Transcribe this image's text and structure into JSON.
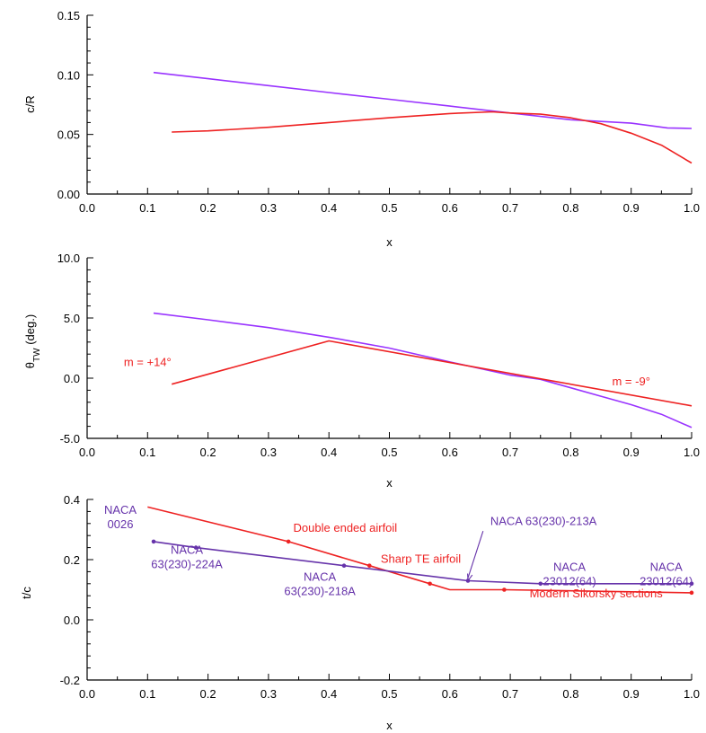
{
  "chart_data": [
    {
      "type": "line",
      "xlabel": "x",
      "ylabel": "c/R",
      "xlim": [
        0.0,
        1.0
      ],
      "ylim": [
        0.0,
        0.15
      ],
      "xticks": [
        "0.0",
        "0.1",
        "0.2",
        "0.3",
        "0.4",
        "0.5",
        "0.6",
        "0.7",
        "0.8",
        "0.9",
        "1.0"
      ],
      "yticks": [
        "0.00",
        "0.05",
        "0.10",
        "0.15"
      ],
      "grid": false,
      "series": [
        {
          "color": "#9933ff",
          "x": [
            0.11,
            0.2,
            0.3,
            0.4,
            0.5,
            0.6,
            0.7,
            0.8,
            0.9,
            0.96,
            1.0
          ],
          "y": [
            0.102,
            0.0968,
            0.091,
            0.0852,
            0.0795,
            0.0738,
            0.068,
            0.0623,
            0.0595,
            0.0555,
            0.055
          ]
        },
        {
          "color": "#ee2222",
          "x": [
            0.14,
            0.2,
            0.3,
            0.4,
            0.5,
            0.6,
            0.67,
            0.7,
            0.75,
            0.8,
            0.85,
            0.9,
            0.95,
            1.0
          ],
          "y": [
            0.052,
            0.053,
            0.056,
            0.06,
            0.064,
            0.0675,
            0.069,
            0.068,
            0.067,
            0.064,
            0.059,
            0.051,
            0.041,
            0.026
          ]
        }
      ]
    },
    {
      "type": "line",
      "xlabel": "x",
      "ylabel": "θ",
      "ylabel_sub": "TW",
      "ylabel_tail": " (deg.)",
      "xlim": [
        0.0,
        1.0
      ],
      "ylim": [
        -5.0,
        10.0
      ],
      "xticks": [
        "0.0",
        "0.1",
        "0.2",
        "0.3",
        "0.4",
        "0.5",
        "0.6",
        "0.7",
        "0.8",
        "0.9",
        "1.0"
      ],
      "yticks": [
        "-5.0",
        "0.0",
        "5.0",
        "10.0"
      ],
      "grid": false,
      "annotations": [
        {
          "text": "m = +14°",
          "x": 0.1,
          "y": 1.0
        },
        {
          "text": "m = -9°",
          "x": 0.9,
          "y": -0.6
        }
      ],
      "series": [
        {
          "color": "#9933ff",
          "x": [
            0.11,
            0.2,
            0.3,
            0.4,
            0.5,
            0.6,
            0.7,
            0.75,
            0.8,
            0.85,
            0.9,
            0.95,
            1.0
          ],
          "y": [
            5.4,
            4.85,
            4.2,
            3.4,
            2.5,
            1.35,
            0.25,
            -0.1,
            -0.8,
            -1.5,
            -2.2,
            -3.0,
            -4.1
          ]
        },
        {
          "color": "#ee2222",
          "x": [
            0.14,
            0.4,
            1.0
          ],
          "y": [
            -0.5,
            3.1,
            -2.3
          ]
        }
      ]
    },
    {
      "type": "line",
      "xlabel": "x",
      "ylabel": "t/c",
      "xlim": [
        0.0,
        1.0
      ],
      "ylim": [
        -0.2,
        0.4
      ],
      "xticks": [
        "0.0",
        "0.1",
        "0.2",
        "0.3",
        "0.4",
        "0.5",
        "0.6",
        "0.7",
        "0.8",
        "0.9",
        "1.0"
      ],
      "yticks": [
        "-0.2",
        "0.0",
        "0.2",
        "0.4"
      ],
      "grid": false,
      "series": [
        {
          "color": "#ee2222",
          "x": [
            0.1,
            0.333,
            0.467,
            0.567,
            0.6,
            0.69,
            1.0
          ],
          "y": [
            0.375,
            0.26,
            0.18,
            0.12,
            0.1,
            0.1,
            0.09
          ],
          "markers": [
            1,
            2,
            3,
            5,
            6
          ]
        },
        {
          "color": "#6633aa",
          "x": [
            0.11,
            0.18,
            0.425,
            0.63,
            0.75,
            1.0
          ],
          "y": [
            0.26,
            0.24,
            0.18,
            0.13,
            0.12,
            0.12
          ],
          "markers": [
            0,
            1,
            2,
            3,
            4,
            5
          ]
        }
      ],
      "annotations": [
        {
          "lines": [
            "NACA",
            "0026"
          ],
          "color": "#6633aa",
          "x": 0.055,
          "y": 0.352
        },
        {
          "lines": [
            "NACA",
            "63(230)-224A"
          ],
          "color": "#6633aa",
          "x": 0.165,
          "y": 0.22
        },
        {
          "lines": [
            "NACA",
            "63(230)-218A"
          ],
          "color": "#6633aa",
          "x": 0.385,
          "y": 0.13
        },
        {
          "lines": [
            "NACA 63(230)-213A"
          ],
          "color": "#6633aa",
          "x": 0.755,
          "y": 0.315
        },
        {
          "lines": [
            "NACA",
            "23012(64)"
          ],
          "color": "#6633aa",
          "x": 0.798,
          "y": 0.163
        },
        {
          "lines": [
            "NACA",
            "23012(64)"
          ],
          "color": "#6633aa",
          "x": 0.958,
          "y": 0.163
        },
        {
          "lines": [
            "Double ended airfoil"
          ],
          "color": "#ee2222",
          "x": 0.427,
          "y": 0.293
        },
        {
          "lines": [
            "Sharp TE airfoil"
          ],
          "color": "#ee2222",
          "x": 0.552,
          "y": 0.19
        },
        {
          "lines": [
            "Modern Sikorsky sections"
          ],
          "color": "#ee2222",
          "x": 0.842,
          "y": 0.075
        }
      ]
    }
  ]
}
